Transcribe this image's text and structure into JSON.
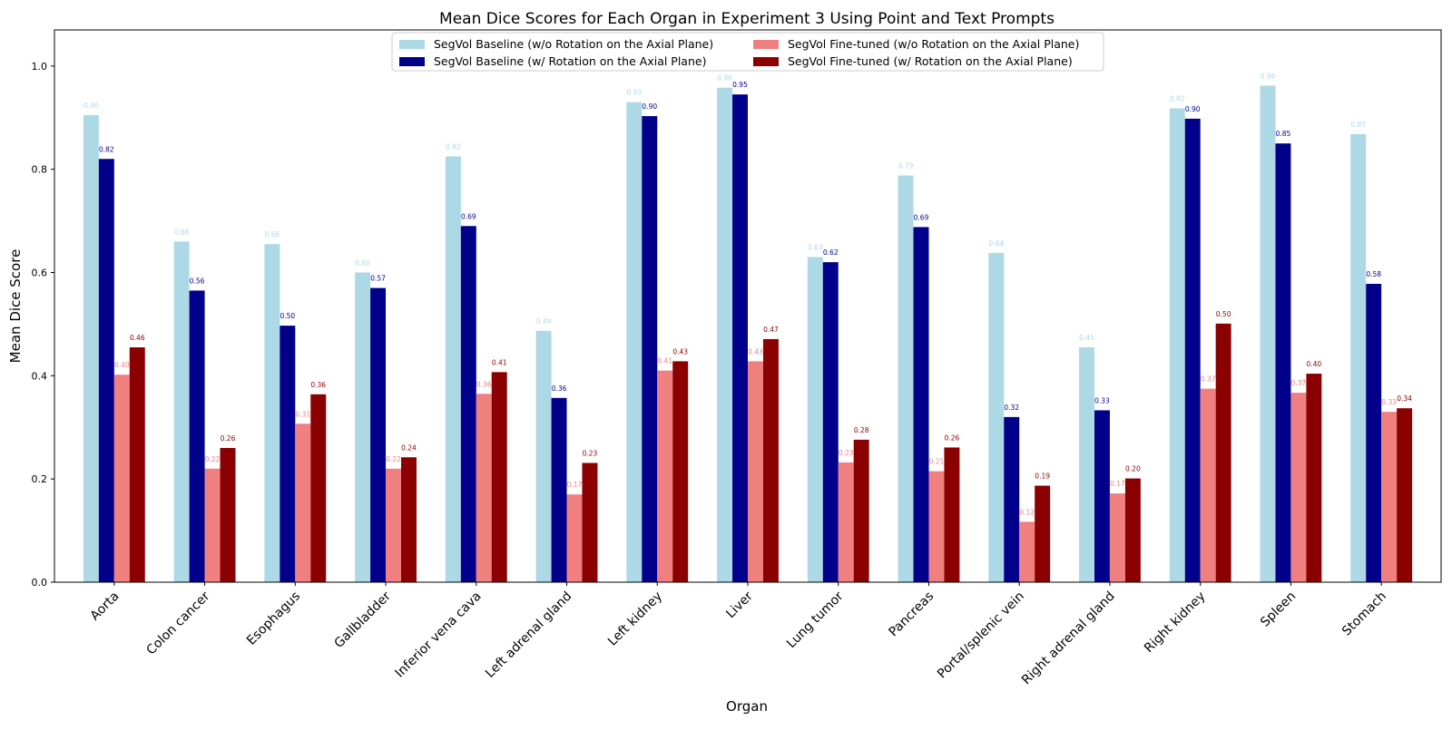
{
  "chart_data": {
    "type": "bar",
    "title": "Mean Dice Scores for Each Organ in Experiment 3 Using Point and Text Prompts",
    "xlabel": "Organ",
    "ylabel": "Mean Dice Score",
    "ylim": [
      0,
      1.07
    ],
    "yticks": [
      "0.0",
      "0.2",
      "0.4",
      "0.6",
      "0.8",
      "1.0"
    ],
    "grid": false,
    "legend_position": "top-center",
    "categories": [
      "Aorta",
      "Colon cancer",
      "Esophagus",
      "Gallbladder",
      "Inferior vena cava",
      "Left adrenal gland",
      "Left kidney",
      "Liver",
      "Lung tumor",
      "Pancreas",
      "Portal/splenic vein",
      "Right adrenal gland",
      "Right kidney",
      "Spleen",
      "Stomach"
    ],
    "series": [
      {
        "name": "SegVol Baseline (w/o Rotation on the Axial Plane)",
        "color": "#add8e6",
        "label_color": "#add8e6",
        "values": [
          0.905,
          0.66,
          0.655,
          0.6,
          0.825,
          0.487,
          0.93,
          0.958,
          0.63,
          0.788,
          0.638,
          0.455,
          0.918,
          0.962,
          0.868
        ],
        "labels": [
          "0.90",
          "0.66",
          "0.66",
          "0.60",
          "0.82",
          "0.49",
          "0.93",
          "0.96",
          "0.63",
          "0.79",
          "0.64",
          "0.45",
          "0.92",
          "0.96",
          "0.87"
        ]
      },
      {
        "name": "SegVol Baseline (w/ Rotation on the Axial Plane)",
        "color": "#00008b",
        "label_color": "#00008b",
        "values": [
          0.82,
          0.565,
          0.497,
          0.57,
          0.69,
          0.357,
          0.903,
          0.945,
          0.62,
          0.688,
          0.32,
          0.333,
          0.898,
          0.85,
          0.578
        ],
        "labels": [
          "0.82",
          "0.56",
          "0.50",
          "0.57",
          "0.69",
          "0.36",
          "0.90",
          "0.95",
          "0.62",
          "0.69",
          "0.32",
          "0.33",
          "0.90",
          "0.85",
          "0.58"
        ]
      },
      {
        "name": "SegVol Fine-tuned (w/o Rotation on the Axial Plane)",
        "color": "#f08080",
        "label_color": "#f08080",
        "values": [
          0.402,
          0.22,
          0.307,
          0.22,
          0.365,
          0.17,
          0.41,
          0.428,
          0.232,
          0.215,
          0.117,
          0.172,
          0.375,
          0.367,
          0.33
        ],
        "labels": [
          "0.40",
          "0.22",
          "0.31",
          "0.22",
          "0.36",
          "0.17",
          "0.41",
          "0.43",
          "0.23",
          "0.21",
          "0.12",
          "0.17",
          "0.37",
          "0.37",
          "0.33"
        ]
      },
      {
        "name": "SegVol Fine-tuned (w/ Rotation on the Axial Plane)",
        "color": "#8b0000",
        "label_color": "#8b0000",
        "values": [
          0.455,
          0.26,
          0.364,
          0.242,
          0.407,
          0.231,
          0.428,
          0.471,
          0.276,
          0.261,
          0.187,
          0.201,
          0.501,
          0.404,
          0.337
        ],
        "labels": [
          "0.46",
          "0.26",
          "0.36",
          "0.24",
          "0.41",
          "0.23",
          "0.43",
          "0.47",
          "0.28",
          "0.26",
          "0.19",
          "0.20",
          "0.50",
          "0.40",
          "0.34"
        ]
      }
    ]
  }
}
